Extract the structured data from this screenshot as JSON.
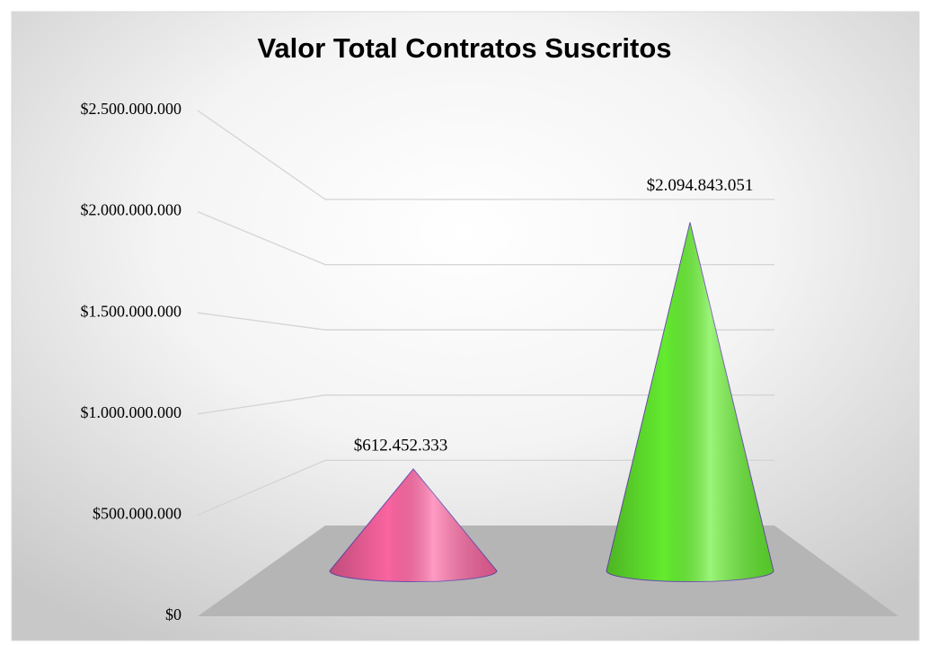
{
  "chart_data": {
    "type": "cone",
    "title": "Valor Total Contratos Suscritos",
    "categories": [
      null,
      null
    ],
    "values": [
      612452333,
      2094843051
    ],
    "value_labels": [
      "$612.452.333",
      "$2.094.843.051"
    ],
    "colors": [
      "#ff66a3",
      "#66f030"
    ],
    "ylim": [
      0,
      2500000000
    ],
    "yticks": [
      {
        "value": 0,
        "label": "$0"
      },
      {
        "value": 500000000,
        "label": "$500.000.000"
      },
      {
        "value": 1000000000,
        "label": "$1.000.000.000"
      },
      {
        "value": 1500000000,
        "label": "$1.500.000.000"
      },
      {
        "value": 2000000000,
        "label": "$2.000.000.000"
      },
      {
        "value": 2500000000,
        "label": "$2.500.000.000"
      }
    ],
    "grid": true
  }
}
